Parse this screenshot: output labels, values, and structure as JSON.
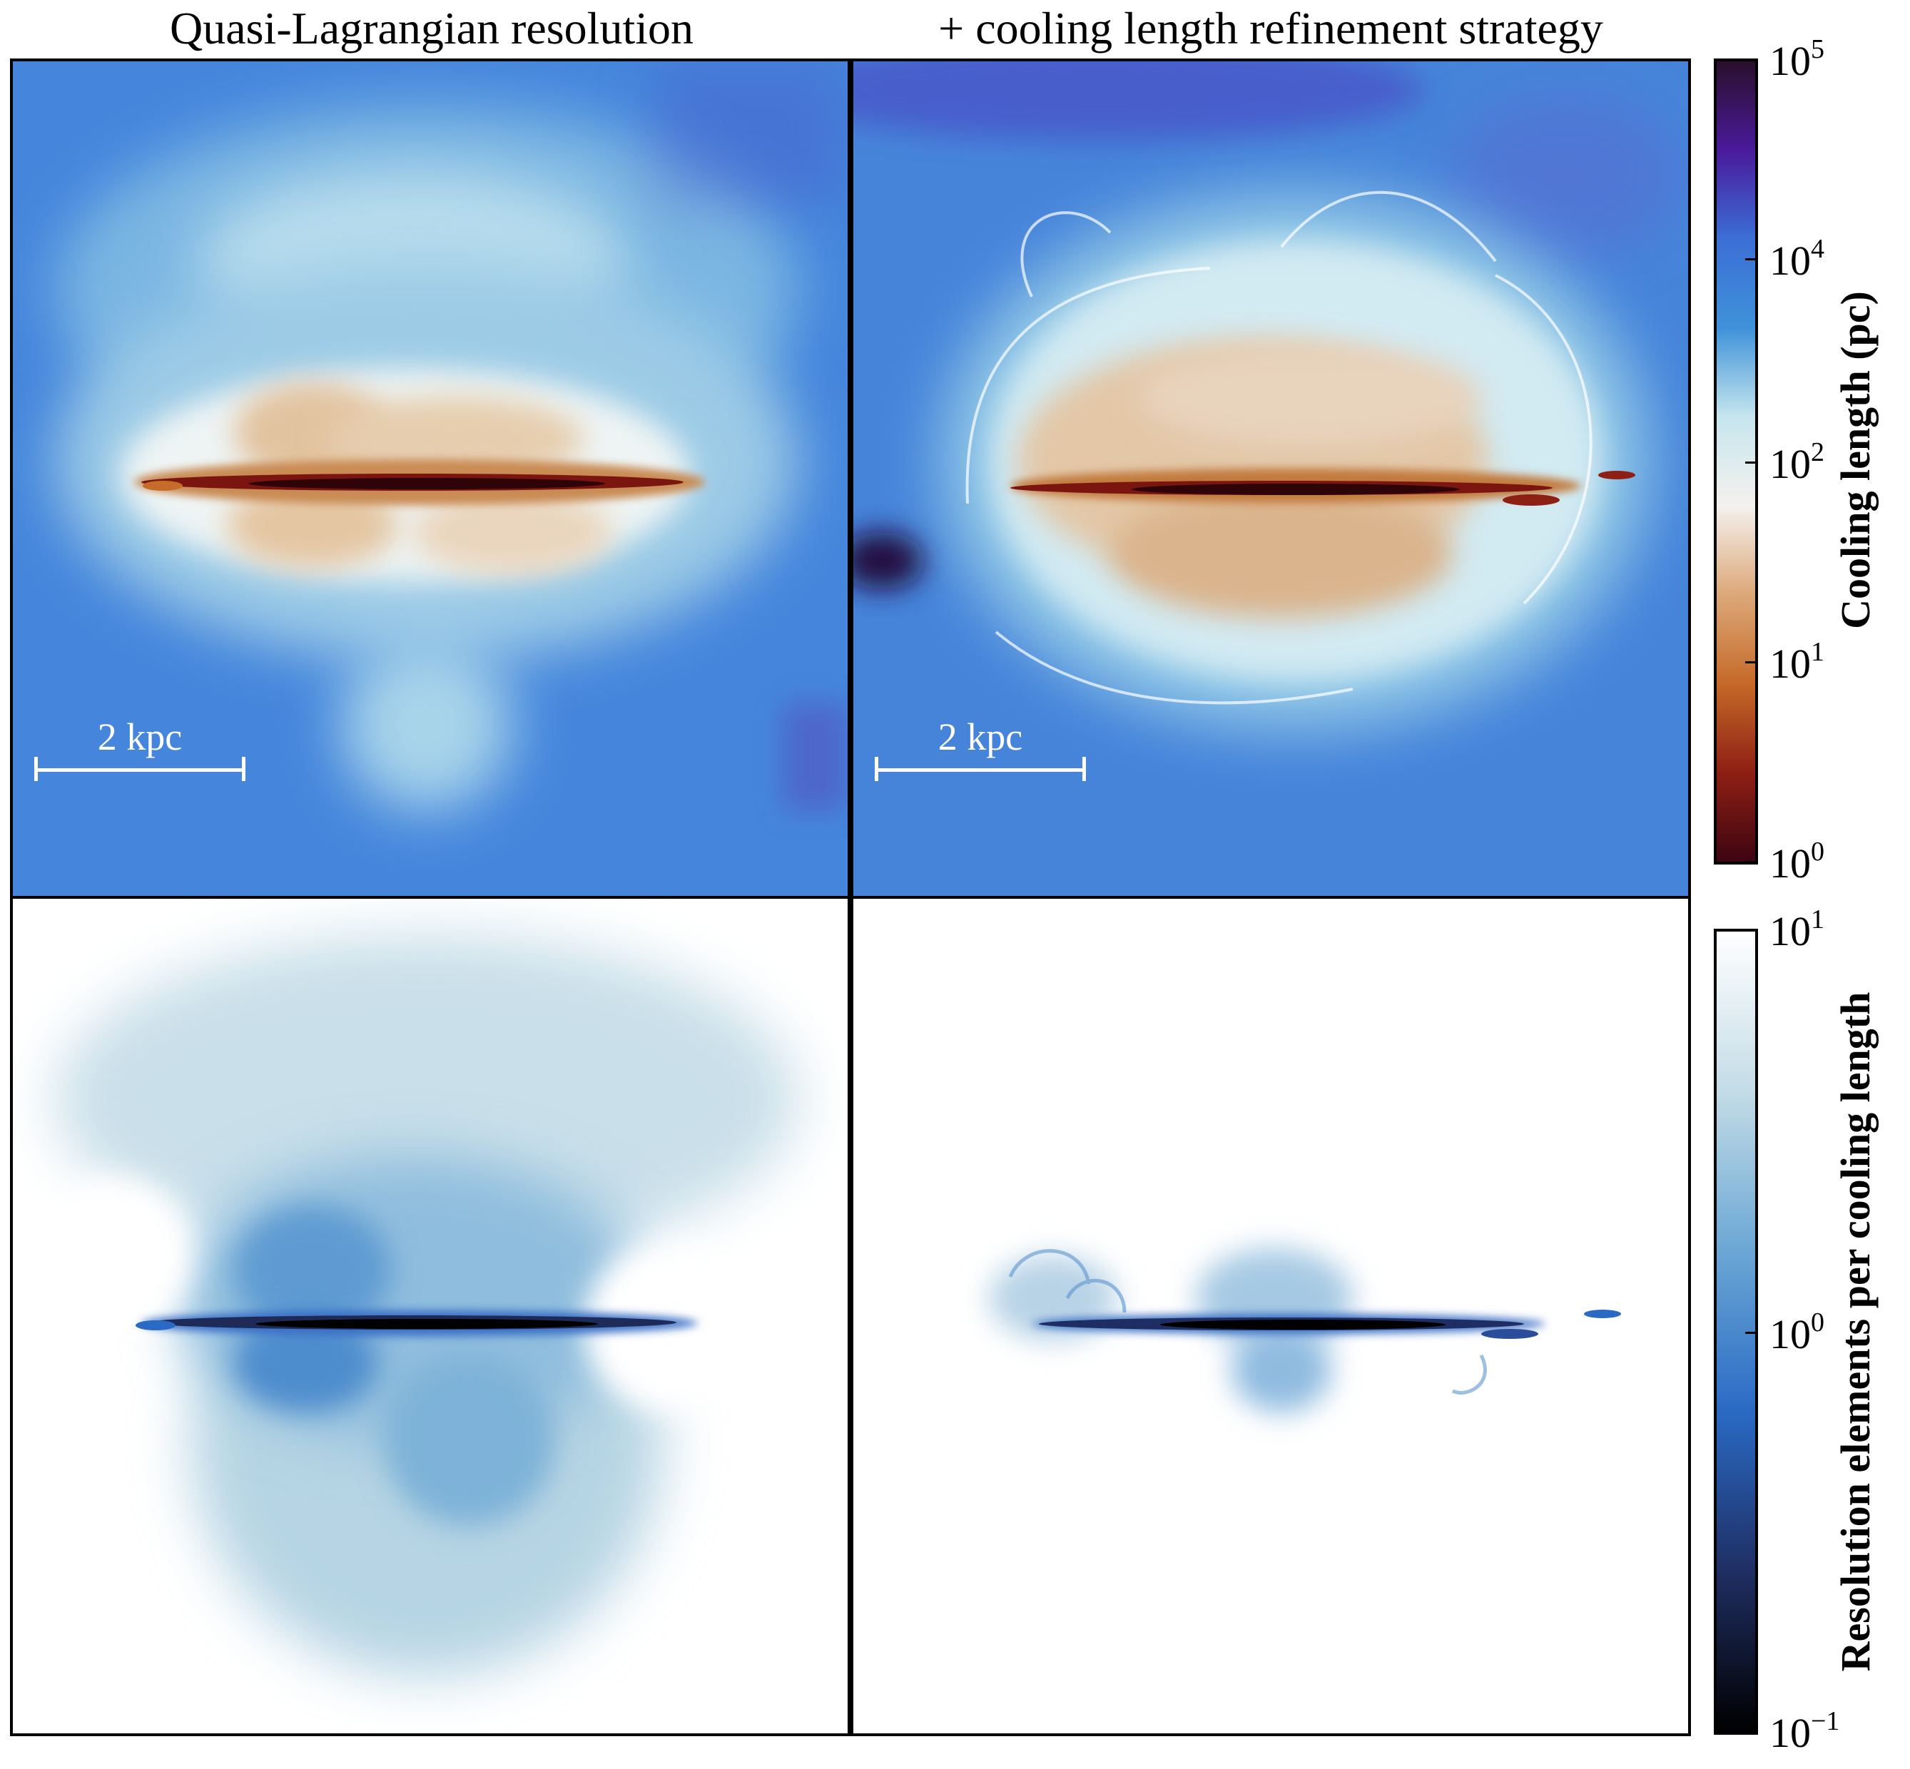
{
  "titles": {
    "left": "Quasi-Lagrangian resolution",
    "right": "+ cooling length refinement strategy"
  },
  "scalebar_label": "2 kpc",
  "colorbars": {
    "cooling": {
      "label": "Cooling length (pc)",
      "scale": "log",
      "ticks": [
        {
          "base": "10",
          "exp": "5"
        },
        {
          "base": "10",
          "exp": "4"
        },
        {
          "base": "10",
          "exp": "2"
        },
        {
          "base": "10",
          "exp": "1"
        },
        {
          "base": "10",
          "exp": "0"
        }
      ],
      "colors": [
        "#2a0f2b",
        "#4a1a9b",
        "#3b6fd6",
        "#3f92d9",
        "#c6e6ee",
        "#f4f1ee",
        "#dca879",
        "#c56a28",
        "#8e1f14",
        "#3d0512"
      ]
    },
    "resolution": {
      "label": "Resolution elements per cooling length",
      "scale": "log",
      "ticks": [
        {
          "base": "10",
          "exp": "1"
        },
        {
          "base": "10",
          "exp": "0"
        },
        {
          "base": "10",
          "exp": "−1"
        }
      ],
      "colors": [
        "#ffffff",
        "#c3dce6",
        "#6aa6d4",
        "#2a6ac4",
        "#1f2e62",
        "#000000"
      ]
    }
  }
}
